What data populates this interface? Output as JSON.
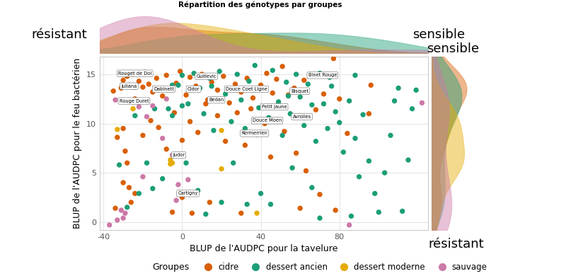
{
  "chart_data": {
    "type": "scatter",
    "title": "Répartition des génotypes par groupes",
    "x_label": "BLUP de l'AUDPC pour la tavelure",
    "y_label": "BLUP de l'AUDPC pour le feu bactérien",
    "xlim": [
      -42,
      125
    ],
    "xticks": [
      -40,
      0,
      40,
      80
    ],
    "ylim": [
      -0.8,
      16.8
    ],
    "yticks": [
      0,
      5,
      10,
      15
    ],
    "grid": true,
    "legend": "bottom",
    "legend_title": "Groupes",
    "marker": "circle",
    "margin_labels": {
      "top": [
        "résistant",
        "sensible"
      ],
      "right": [
        "sensible",
        "résistant"
      ]
    },
    "series": [
      {
        "name": "cidre",
        "color": "#D95F02",
        "x": [
          -31,
          -30,
          -28,
          -27,
          -25,
          -24,
          -22,
          -20,
          -19,
          -17,
          -15,
          -13,
          -10,
          -8,
          -6,
          -3,
          -1,
          2,
          4,
          7,
          10,
          13,
          15,
          18,
          21,
          24,
          27,
          30,
          33,
          36,
          40,
          43,
          46,
          48,
          51,
          54,
          57,
          62,
          77,
          -33,
          -30,
          -28,
          -29,
          -27,
          -26,
          -24,
          -30,
          -20,
          -16,
          -12,
          -8,
          -4,
          0,
          4,
          8,
          12,
          5,
          0,
          -5,
          14,
          18,
          22,
          28,
          32,
          35,
          38,
          42,
          45,
          48,
          52,
          58,
          63,
          68,
          70,
          72,
          78,
          80,
          84,
          96,
          95,
          -35,
          -34,
          30,
          60
        ],
        "values": [
          13.6,
          14.4,
          14.8,
          13.9,
          15.0,
          12.5,
          14.3,
          13.7,
          15.2,
          14.0,
          13.2,
          14.6,
          12.8,
          14.9,
          13.5,
          14.1,
          15.3,
          12.9,
          14.7,
          13.8,
          15.0,
          12.4,
          14.2,
          13.4,
          14.8,
          12.1,
          14.0,
          13.2,
          14.6,
          12.6,
          13.9,
          15.1,
          13.1,
          14.5,
          15.8,
          12.9,
          13.6,
          14.4,
          16.6,
          8.6,
          9.5,
          6.0,
          7.2,
          3.5,
          2.0,
          2.9,
          4.0,
          8.8,
          10.3,
          9.6,
          7.4,
          11.1,
          8.3,
          10.2,
          9.1,
          12.0,
          0.9,
          2.5,
          1.0,
          2.0,
          10.8,
          8.2,
          11.1,
          7.8,
          11.5,
          8.9,
          10.0,
          6.6,
          11.8,
          9.2,
          7.0,
          5.2,
          11.4,
          2.8,
          13.0,
          1.2,
          12.5,
          9.0,
          13.9,
          11.0,
          13.3,
          1.4,
          0.9,
          1.4
        ]
      },
      {
        "name": "dessert ancien",
        "color": "#1B9E77",
        "x": [
          -32,
          -28,
          -22,
          -18,
          -15,
          -10,
          -7,
          -5,
          -2,
          0,
          3,
          6,
          9,
          11,
          14,
          16,
          19,
          22,
          25,
          28,
          30,
          32,
          34,
          37,
          39,
          41,
          44,
          46,
          49,
          51,
          53,
          55,
          58,
          60,
          62,
          64,
          66,
          68,
          70,
          72,
          74,
          76,
          78,
          80,
          82,
          85,
          88,
          90,
          92,
          95,
          98,
          100,
          103,
          106,
          108,
          110,
          112,
          115,
          117,
          119,
          2,
          8,
          12,
          20,
          26,
          33,
          40,
          45,
          56,
          66,
          70,
          86,
          -24,
          -14,
          -25,
          -5,
          15,
          0,
          36,
          54,
          75,
          88
        ],
        "values": [
          5.8,
          1.5,
          2.9,
          6.0,
          3.4,
          4.4,
          11.5,
          10.8,
          13.9,
          14.9,
          12.0,
          15.1,
          13.6,
          11.0,
          14.6,
          9.3,
          15.3,
          13.0,
          10.2,
          15.0,
          12.4,
          9.5,
          14.3,
          15.9,
          11.6,
          13.5,
          10.6,
          15.4,
          12.2,
          8.8,
          14.2,
          11.0,
          15.0,
          12.7,
          9.8,
          14.0,
          11.9,
          8.2,
          15.1,
          12.0,
          9.5,
          13.8,
          11.2,
          10.1,
          7.1,
          12.3,
          8.5,
          4.6,
          10.9,
          6.2,
          2.9,
          1.0,
          5.0,
          8.8,
          12.3,
          13.6,
          1.1,
          6.3,
          11.5,
          13.4,
          6.0,
          3.2,
          0.8,
          2.0,
          6.0,
          1.8,
          2.9,
          1.8,
          5.5,
          3.5,
          0.4,
          0.6,
          10.8,
          11.5,
          13.7,
          13.9,
          13.8,
          11.8,
          13.4,
          12.8,
          14.7,
          14.9
        ]
      },
      {
        "name": "dessert moderne",
        "color": "#E6AB02",
        "x": [
          -33,
          -6,
          -5,
          -6,
          20,
          20,
          38,
          60,
          -25
        ],
        "values": [
          9.4,
          6.3,
          6.0,
          5.9,
          5.4,
          9.3,
          0.9,
          10.8,
          11.5
        ]
      },
      {
        "name": "sauvage",
        "color": "#CC79A7",
        "x": [
          -37,
          -33,
          -31,
          -30,
          -29,
          -20,
          -22,
          -18,
          -10,
          -5,
          -2,
          -3,
          3,
          -34,
          -24,
          85,
          122,
          -15,
          -8
        ],
        "values": [
          -0.3,
          0.2,
          1.2,
          0.4,
          0.9,
          4.6,
          11.7,
          10.7,
          8.5,
          6.8,
          3.8,
          2.2,
          4.3,
          12.4,
          13.7,
          -0.3,
          12.1,
          11.8,
          12.5
        ]
      }
    ],
    "point_labels": [
      {
        "text": "Rouget de Dol",
        "x": -24,
        "y": 15.1
      },
      {
        "text": "Juliana",
        "x": -27,
        "y": 13.8
      },
      {
        "text": "Rouge Duret",
        "x": -24.5,
        "y": 12.3
      },
      {
        "text": "Dabinett",
        "x": -9.4,
        "y": 13.5
      },
      {
        "text": "Guillevic",
        "x": 12.3,
        "y": 14.8
      },
      {
        "text": "Cidor",
        "x": 5.8,
        "y": 13.5
      },
      {
        "text": "Bedan",
        "x": 17.3,
        "y": 12.4
      },
      {
        "text": "Douce Coet Ligne",
        "x": 32.8,
        "y": 13.5
      },
      {
        "text": "Binet Rouge",
        "x": 71.4,
        "y": 14.9
      },
      {
        "text": "Bisquet",
        "x": 59.8,
        "y": 13.3
      },
      {
        "text": "Petit Jaune",
        "x": 46.8,
        "y": 11.7
      },
      {
        "text": "Douce Moen",
        "x": 43.2,
        "y": 10.3
      },
      {
        "text": "Avrolles",
        "x": 60.9,
        "y": 10.7
      },
      {
        "text": "Kermerrien",
        "x": 36.8,
        "y": 9.0
      },
      {
        "text": "Judor",
        "x": -1.8,
        "y": 6.8
      },
      {
        "text": "Cartigny",
        "x": 2.9,
        "y": 2.9
      }
    ]
  }
}
